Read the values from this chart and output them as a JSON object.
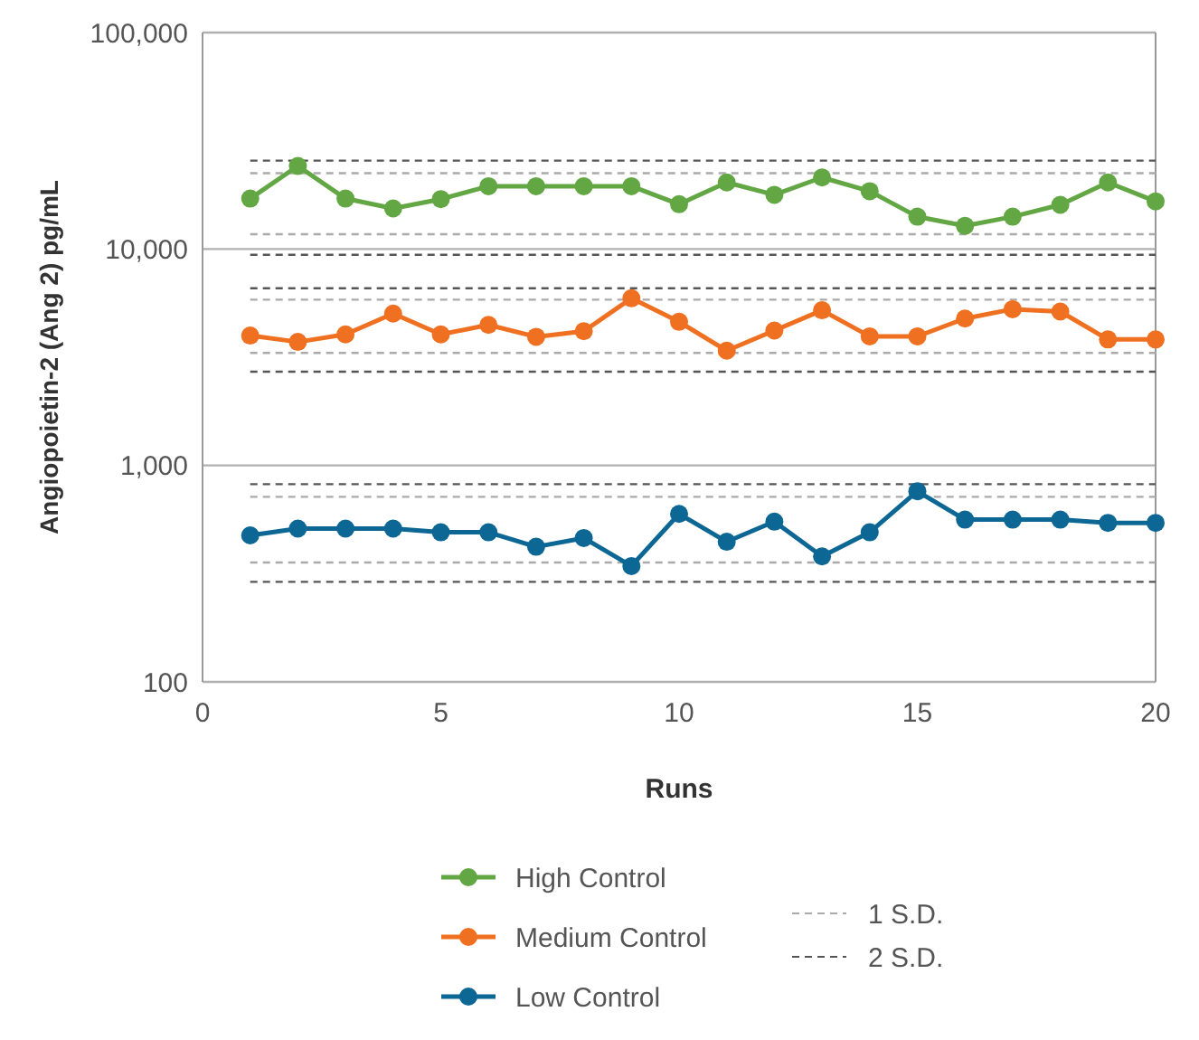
{
  "chart_data": {
    "type": "line",
    "xlabel": "Runs",
    "ylabel": "Angiopoietin-2 (Ang 2) pg/mL",
    "log": "y",
    "grid": "y",
    "marker": "circle",
    "line_style": "solid",
    "legend": "bottom",
    "x": [
      1,
      2,
      3,
      4,
      5,
      6,
      7,
      8,
      9,
      10,
      11,
      12,
      13,
      14,
      15,
      16,
      17,
      18,
      19,
      20
    ],
    "xlim": [
      0,
      20
    ],
    "xticks": [
      0,
      5,
      10,
      15,
      20
    ],
    "ylim": [
      100,
      100000
    ],
    "yticks": [
      {
        "value": 100,
        "label": "100"
      },
      {
        "value": 1000,
        "label": "1,000"
      },
      {
        "value": 10000,
        "label": "10,000"
      },
      {
        "value": 100000,
        "label": "100,000"
      }
    ],
    "series": [
      {
        "name": "High Control",
        "color": "#62a744",
        "values": [
          17100,
          24200,
          17100,
          15400,
          17000,
          19500,
          19500,
          19500,
          19500,
          16100,
          20300,
          17800,
          21400,
          18500,
          14100,
          12800,
          14100,
          16000,
          20300,
          16600
        ]
      },
      {
        "name": "Medium Control",
        "color": "#f07021",
        "values": [
          3980,
          3720,
          4030,
          5030,
          4030,
          4460,
          3930,
          4170,
          5920,
          4610,
          3390,
          4200,
          5210,
          3950,
          3950,
          4770,
          5270,
          5140,
          3820,
          3820
        ]
      },
      {
        "name": "Low Control",
        "color": "#0d6794",
        "values": [
          475,
          511,
          511,
          511,
          491,
          491,
          421,
          462,
          343,
          597,
          444,
          550,
          380,
          491,
          760,
          562,
          562,
          562,
          543,
          543
        ]
      }
    ],
    "ref_lines": [
      {
        "axis": "y",
        "value": 25600,
        "label": "2 S.D.",
        "color": "#555555",
        "line_style": "dashed"
      },
      {
        "axis": "y",
        "value": 22400,
        "label": "1 S.D.",
        "color": "#aaaaaa",
        "line_style": "dashed"
      },
      {
        "axis": "y",
        "value": 11700,
        "color": "#aaaaaa",
        "line_style": "dashed"
      },
      {
        "axis": "y",
        "value": 9400,
        "color": "#555555",
        "line_style": "dashed"
      },
      {
        "axis": "y",
        "value": 6590,
        "color": "#555555",
        "line_style": "dashed"
      },
      {
        "axis": "y",
        "value": 5830,
        "color": "#aaaaaa",
        "line_style": "dashed"
      },
      {
        "axis": "y",
        "value": 3310,
        "color": "#aaaaaa",
        "line_style": "dashed"
      },
      {
        "axis": "y",
        "value": 2710,
        "color": "#555555",
        "line_style": "dashed"
      },
      {
        "axis": "y",
        "value": 819,
        "color": "#555555",
        "line_style": "dashed"
      },
      {
        "axis": "y",
        "value": 716,
        "color": "#aaaaaa",
        "line_style": "dashed"
      },
      {
        "axis": "y",
        "value": 356,
        "color": "#aaaaaa",
        "line_style": "dashed"
      },
      {
        "axis": "y",
        "value": 290,
        "color": "#555555",
        "line_style": "dashed"
      }
    ]
  }
}
